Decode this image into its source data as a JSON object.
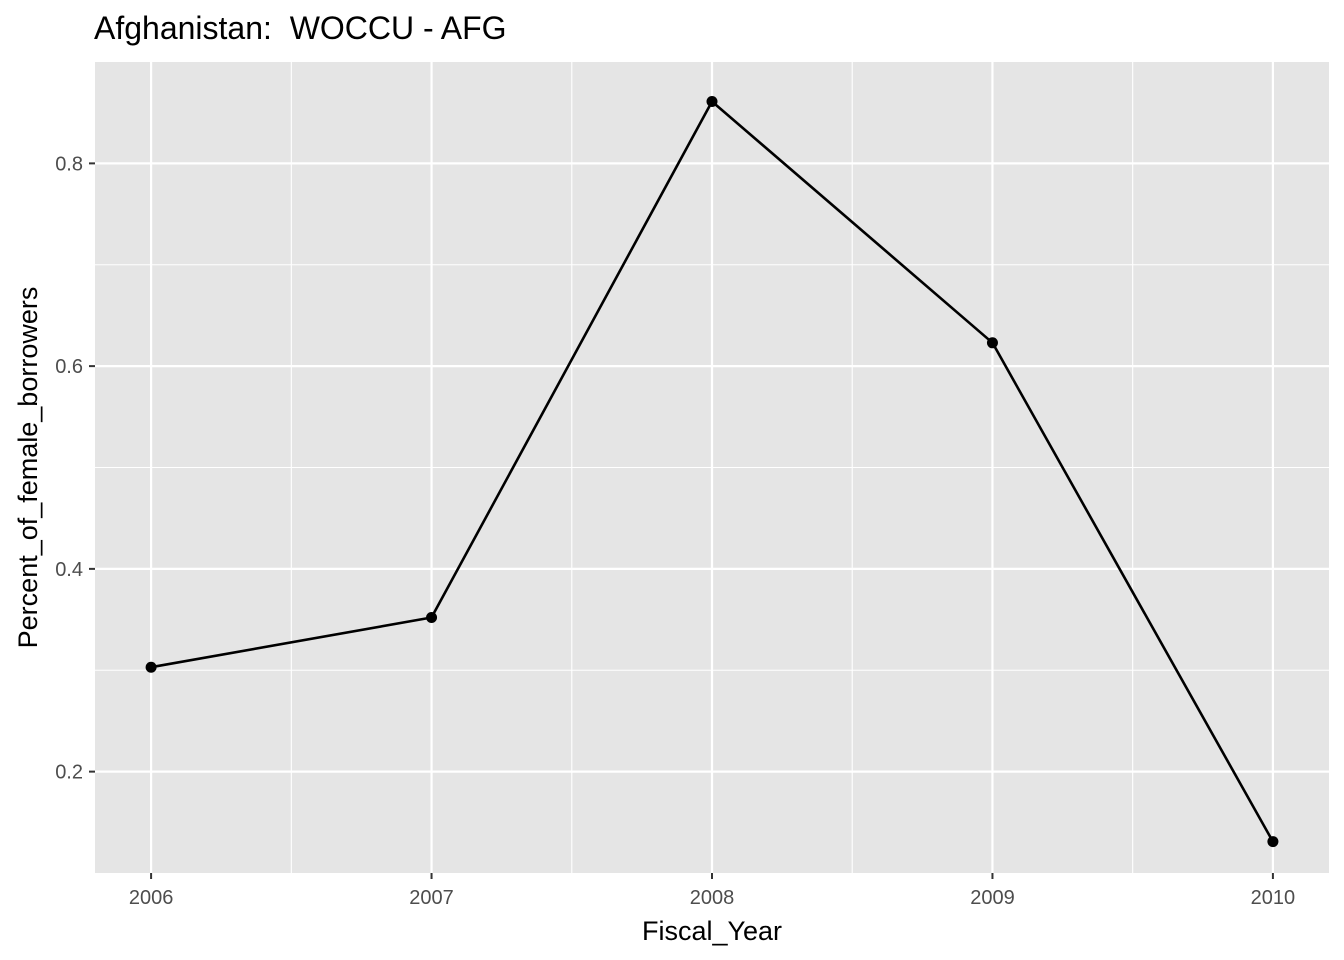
{
  "chart_data": {
    "type": "line",
    "title": "Afghanistan:  WOCCU - AFG",
    "xlabel": "Fiscal_Year",
    "ylabel": "Percent_of_female_borrowers",
    "x": [
      2006,
      2007,
      2008,
      2009,
      2010
    ],
    "x_tick_labels": [
      "2006",
      "2007",
      "2008",
      "2009",
      "2010"
    ],
    "series": [
      {
        "name": "Percent_of_female_borrowers",
        "values": [
          0.303,
          0.352,
          0.861,
          0.623,
          0.131
        ]
      }
    ],
    "yticks": [
      0.2,
      0.4,
      0.6,
      0.8
    ],
    "y_tick_labels": [
      "0.2",
      "0.4",
      "0.6",
      "0.8"
    ],
    "xlim": [
      2005.8,
      2010.2
    ],
    "ylim": [
      0.1,
      0.9
    ],
    "grid": true,
    "legend": "none",
    "colors": {
      "panel_background": "#e5e5e5",
      "grid_line": "#ffffff",
      "series_line": "#000000",
      "tick_text": "#4d4d4d",
      "tick_mark": "#333333"
    }
  }
}
